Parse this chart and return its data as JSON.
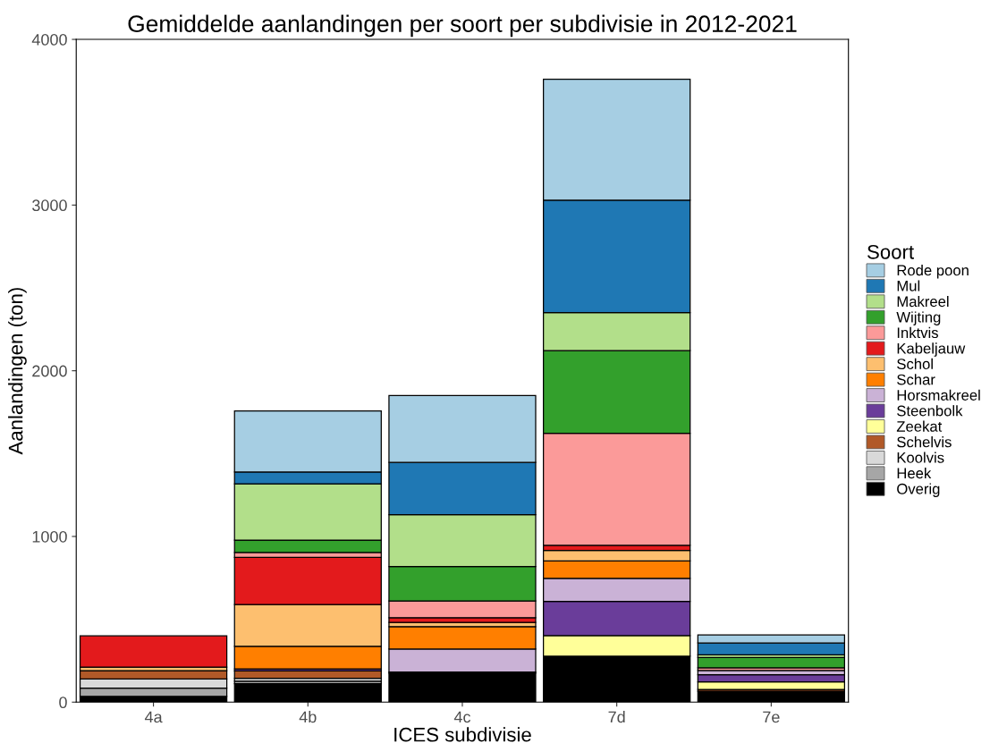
{
  "chart_data": {
    "type": "bar",
    "stacked": true,
    "title": "Gemiddelde aanlandingen per soort per subdivisie in 2012-2021",
    "xlabel": "ICES subdivisie",
    "ylabel": "Aanlandingen (ton)",
    "legend_title": "Soort",
    "legend": "right",
    "grid": false,
    "categories": [
      "4a",
      "4b",
      "4c",
      "7d",
      "7e"
    ],
    "ylim": [
      0,
      4000
    ],
    "yticks": [
      0,
      1000,
      2000,
      3000,
      4000
    ],
    "series": [
      {
        "name": "Overig",
        "color": "#000000",
        "values": [
          35,
          112,
          175,
          277,
          66
        ]
      },
      {
        "name": "Heek",
        "color": "#a6a6a6",
        "values": [
          50,
          15,
          0,
          0,
          0
        ]
      },
      {
        "name": "Koolvis",
        "color": "#d9d9d9",
        "values": [
          55,
          17,
          0,
          0,
          0
        ]
      },
      {
        "name": "Schelvis",
        "color": "#b15928",
        "values": [
          50,
          45,
          0,
          0,
          11
        ]
      },
      {
        "name": "Zeekat",
        "color": "#ffff99",
        "values": [
          0,
          0,
          0,
          125,
          45
        ]
      },
      {
        "name": "Steenbolk",
        "color": "#6a3d9a",
        "values": [
          0,
          11,
          7,
          206,
          44
        ]
      },
      {
        "name": "Horsmakreel",
        "color": "#cab2d6",
        "values": [
          0,
          0,
          138,
          139,
          25
        ]
      },
      {
        "name": "Schar",
        "color": "#ff7f00",
        "values": [
          null,
          137,
          136,
          105,
          0
        ]
      },
      {
        "name": "Schol",
        "color": "#fdbf6f",
        "values": [
          22,
          252,
          25,
          64,
          0
        ]
      },
      {
        "name": "Kabeljauw",
        "color": "#e31a1c",
        "values": [
          188,
          285,
          29,
          30,
          null
        ]
      },
      {
        "name": "Inktvis",
        "color": "#fb9a99",
        "values": [
          0,
          29,
          101,
          677,
          16
        ]
      },
      {
        "name": "Wijting",
        "color": "#33a02c",
        "values": [
          0,
          75,
          207,
          498,
          62
        ]
      },
      {
        "name": "Makreel",
        "color": "#b2df8a",
        "values": [
          0,
          339,
          313,
          230,
          17
        ]
      },
      {
        "name": "Mul",
        "color": "#1f78b4",
        "values": [
          0,
          72,
          316,
          678,
          71
        ]
      },
      {
        "name": "Rode poon",
        "color": "#a6cee3",
        "values": [
          0,
          368,
          403,
          731,
          48
        ]
      }
    ]
  }
}
